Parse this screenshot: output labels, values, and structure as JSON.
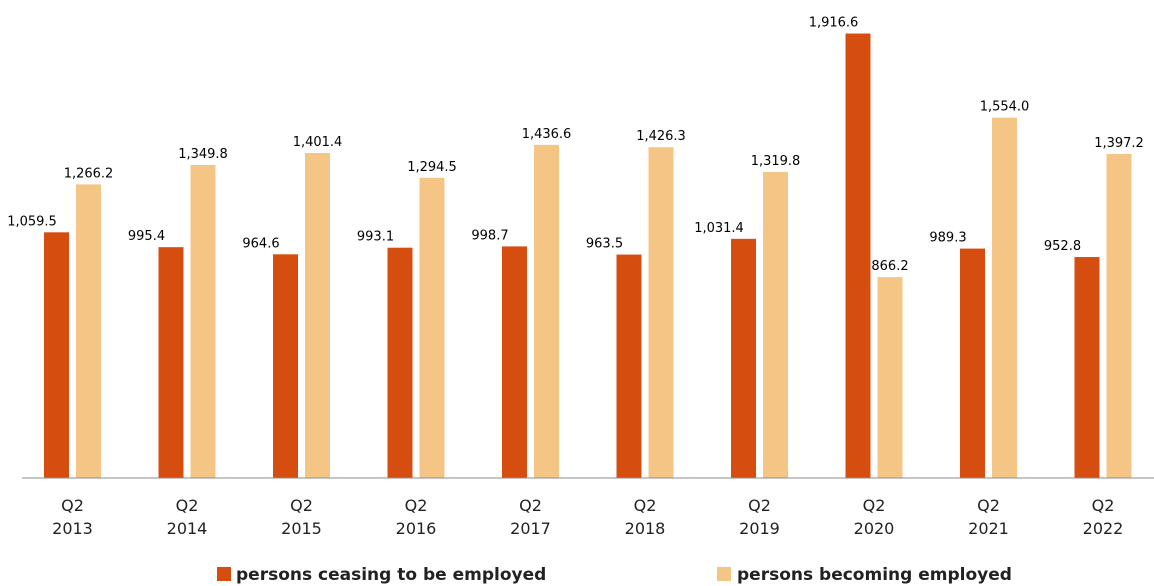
{
  "chart_data": {
    "type": "bar",
    "title": "",
    "xlabel": "",
    "ylabel": "",
    "ylim": [
      0,
      2000
    ],
    "grid": false,
    "legend_position": "bottom",
    "categories": [
      {
        "line1": "Q2",
        "line2": "2013"
      },
      {
        "line1": "Q2",
        "line2": "2014"
      },
      {
        "line1": "Q2",
        "line2": "2015"
      },
      {
        "line1": "Q2",
        "line2": "2016"
      },
      {
        "line1": "Q2",
        "line2": "2017"
      },
      {
        "line1": "Q2",
        "line2": "2018"
      },
      {
        "line1": "Q2",
        "line2": "2019"
      },
      {
        "line1": "Q2",
        "line2": "2020"
      },
      {
        "line1": "Q2",
        "line2": "2021"
      },
      {
        "line1": "Q2",
        "line2": "2022"
      }
    ],
    "series": [
      {
        "name": "persons ceasing to be employed",
        "color": "#d64d10",
        "values": [
          1059.5,
          995.4,
          964.6,
          993.1,
          998.7,
          963.5,
          1031.4,
          1916.6,
          989.3,
          952.8
        ],
        "labels": [
          "1,059.5",
          "995.4",
          "964.6",
          "993.1",
          "998.7",
          "963.5",
          "1,031.4",
          "1,916.6",
          "989.3",
          "952.8"
        ]
      },
      {
        "name": "persons becoming employed",
        "color": "#f5c585",
        "values": [
          1266.2,
          1349.8,
          1401.4,
          1294.5,
          1436.6,
          1426.3,
          1319.8,
          866.2,
          1554.0,
          1397.2
        ],
        "labels": [
          "1,266.2",
          "1,349.8",
          "1,401.4",
          "1,294.5",
          "1,436.6",
          "1,426.3",
          "1,319.8",
          "866.2",
          "1,554.0",
          "1,397.2"
        ]
      }
    ]
  }
}
